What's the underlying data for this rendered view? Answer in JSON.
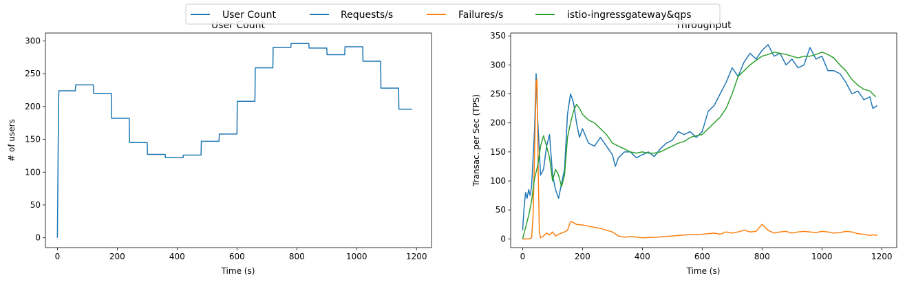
{
  "chart_data": [
    {
      "type": "line",
      "title": "User Count",
      "xlabel": "Time (s)",
      "ylabel": "# of users",
      "xlim": [
        -40,
        1250
      ],
      "ylim": [
        -15,
        312
      ],
      "xticks": [
        0,
        200,
        400,
        600,
        800,
        1000,
        1200
      ],
      "yticks": [
        0,
        50,
        100,
        150,
        200,
        250,
        300
      ],
      "grid": false,
      "series": [
        {
          "name": "User Count",
          "color": "#1f77b4",
          "x": [
            0,
            4,
            5,
            60,
            61,
            120,
            121,
            180,
            181,
            240,
            241,
            300,
            301,
            360,
            361,
            420,
            421,
            480,
            481,
            540,
            541,
            600,
            601,
            660,
            661,
            720,
            721,
            780,
            781,
            840,
            841,
            900,
            901,
            960,
            961,
            1020,
            1021,
            1080,
            1081,
            1140,
            1141,
            1185
          ],
          "y": [
            0,
            205,
            224,
            224,
            233,
            233,
            220,
            220,
            182,
            182,
            145,
            145,
            127,
            127,
            122,
            122,
            126,
            126,
            147,
            147,
            158,
            158,
            208,
            208,
            259,
            259,
            290,
            290,
            296,
            296,
            289,
            289,
            279,
            279,
            291,
            291,
            269,
            269,
            228,
            228,
            196,
            196
          ]
        }
      ]
    },
    {
      "type": "line",
      "title": "Throughput",
      "xlabel": "Time (s)",
      "ylabel": "Transac. per Sec (TPS)",
      "xlim": [
        -40,
        1250
      ],
      "ylim": [
        -15,
        355
      ],
      "xticks": [
        0,
        200,
        400,
        600,
        800,
        1000,
        1200
      ],
      "yticks": [
        0,
        50,
        100,
        150,
        200,
        250,
        300,
        350
      ],
      "grid": false,
      "series": [
        {
          "name": "Requests/s",
          "color": "#1f77b4",
          "x": [
            0,
            5,
            10,
            15,
            20,
            25,
            30,
            35,
            40,
            45,
            50,
            55,
            60,
            70,
            80,
            90,
            100,
            110,
            120,
            130,
            140,
            150,
            160,
            170,
            180,
            190,
            200,
            220,
            240,
            260,
            280,
            300,
            310,
            320,
            340,
            360,
            380,
            400,
            420,
            440,
            460,
            480,
            500,
            520,
            540,
            560,
            580,
            600,
            620,
            640,
            660,
            680,
            700,
            720,
            740,
            760,
            780,
            800,
            820,
            840,
            860,
            880,
            900,
            920,
            940,
            960,
            980,
            1000,
            1020,
            1040,
            1060,
            1080,
            1100,
            1120,
            1140,
            1160,
            1170,
            1185
          ],
          "y": [
            15,
            55,
            80,
            70,
            85,
            75,
            90,
            140,
            190,
            285,
            210,
            160,
            110,
            120,
            160,
            180,
            110,
            85,
            70,
            95,
            120,
            215,
            250,
            235,
            200,
            175,
            190,
            165,
            160,
            175,
            160,
            145,
            125,
            140,
            150,
            150,
            140,
            145,
            150,
            142,
            155,
            165,
            170,
            185,
            180,
            185,
            175,
            185,
            220,
            230,
            250,
            270,
            295,
            280,
            305,
            320,
            310,
            325,
            335,
            315,
            320,
            300,
            310,
            295,
            300,
            330,
            310,
            315,
            290,
            290,
            285,
            270,
            250,
            255,
            240,
            245,
            225,
            230
          ]
        },
        {
          "name": "Failures/s",
          "color": "#ff7f0e",
          "x": [
            0,
            20,
            30,
            35,
            40,
            45,
            48,
            52,
            56,
            60,
            70,
            80,
            90,
            100,
            110,
            120,
            130,
            140,
            150,
            160,
            170,
            180,
            200,
            220,
            240,
            260,
            280,
            300,
            320,
            340,
            360,
            380,
            400,
            450,
            500,
            550,
            600,
            640,
            660,
            680,
            700,
            720,
            740,
            760,
            780,
            800,
            820,
            840,
            860,
            880,
            900,
            920,
            940,
            960,
            980,
            1000,
            1020,
            1040,
            1060,
            1080,
            1100,
            1120,
            1140,
            1160,
            1170,
            1185
          ],
          "y": [
            0,
            0,
            2,
            40,
            150,
            272,
            275,
            120,
            10,
            2,
            5,
            10,
            7,
            12,
            5,
            8,
            10,
            12,
            15,
            30,
            28,
            25,
            24,
            22,
            20,
            18,
            15,
            12,
            5,
            3,
            4,
            3,
            2,
            3,
            5,
            7,
            8,
            10,
            8,
            12,
            10,
            12,
            15,
            12,
            13,
            25,
            15,
            10,
            12,
            13,
            10,
            12,
            13,
            12,
            11,
            13,
            12,
            10,
            11,
            13,
            12,
            9,
            8,
            6,
            7,
            6
          ]
        },
        {
          "name": "istio-ingressgateway&qps",
          "color": "#2ca02c",
          "x": [
            0,
            10,
            20,
            30,
            40,
            50,
            60,
            70,
            80,
            90,
            100,
            110,
            120,
            130,
            140,
            150,
            160,
            170,
            180,
            190,
            200,
            210,
            220,
            240,
            260,
            280,
            300,
            320,
            340,
            360,
            380,
            400,
            420,
            440,
            460,
            480,
            500,
            520,
            540,
            560,
            580,
            600,
            620,
            640,
            660,
            680,
            700,
            720,
            740,
            760,
            780,
            800,
            820,
            840,
            860,
            880,
            900,
            920,
            940,
            960,
            980,
            1000,
            1020,
            1040,
            1060,
            1080,
            1100,
            1120,
            1140,
            1160,
            1180
          ],
          "y": [
            0,
            20,
            40,
            65,
            105,
            125,
            160,
            178,
            160,
            140,
            100,
            120,
            110,
            90,
            110,
            175,
            200,
            220,
            232,
            225,
            215,
            210,
            205,
            200,
            190,
            180,
            165,
            160,
            155,
            150,
            148,
            150,
            148,
            148,
            150,
            155,
            160,
            165,
            168,
            175,
            178,
            180,
            190,
            200,
            210,
            225,
            250,
            280,
            290,
            300,
            308,
            315,
            318,
            322,
            320,
            318,
            315,
            312,
            315,
            315,
            318,
            322,
            318,
            312,
            300,
            290,
            275,
            265,
            258,
            255,
            245
          ]
        }
      ]
    }
  ],
  "legend": {
    "placement": "top-center",
    "entries": [
      {
        "label": "User Count",
        "color": "#1f77b4"
      },
      {
        "label": "Requests/s",
        "color": "#1f77b4"
      },
      {
        "label": "Failures/s",
        "color": "#ff7f0e"
      },
      {
        "label": "istio-ingressgateway&qps",
        "color": "#2ca02c"
      }
    ]
  }
}
